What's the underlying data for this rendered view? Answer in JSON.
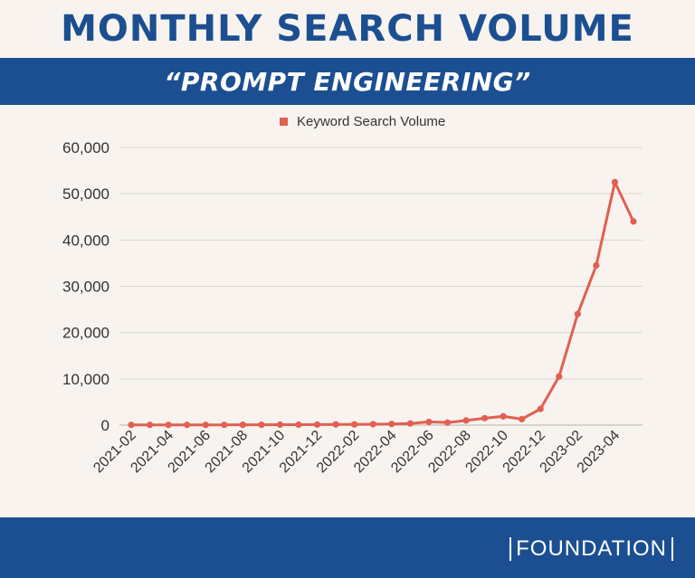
{
  "header": {
    "title": "MONTHLY SEARCH VOLUME",
    "subtitle": "“PROMPT ENGINEERING”"
  },
  "footer": {
    "brand": "FOUNDATION"
  },
  "colors": {
    "accent": "#1b4f91",
    "series": "#e06052",
    "background": "#f8f3ee"
  },
  "chart_data": {
    "type": "line",
    "title": "",
    "xlabel": "",
    "ylabel": "",
    "ylim": [
      0,
      60000
    ],
    "y_ticks": [
      0,
      10000,
      20000,
      30000,
      40000,
      50000,
      60000
    ],
    "y_tick_labels": [
      "0",
      "10,000",
      "20,000",
      "30,000",
      "40,000",
      "50,000",
      "60,000"
    ],
    "x": [
      "2021-02",
      "2021-03",
      "2021-04",
      "2021-05",
      "2021-06",
      "2021-07",
      "2021-08",
      "2021-09",
      "2021-10",
      "2021-11",
      "2021-12",
      "2022-01",
      "2022-02",
      "2022-03",
      "2022-04",
      "2022-05",
      "2022-06",
      "2022-07",
      "2022-08",
      "2022-09",
      "2022-10",
      "2022-11",
      "2022-12",
      "2023-01",
      "2023-02",
      "2023-03",
      "2023-04",
      "2023-05"
    ],
    "x_tick_labels": [
      "2021-02",
      "2021-04",
      "2021-06",
      "2021-08",
      "2021-10",
      "2021-12",
      "2022-02",
      "2022-04",
      "2022-06",
      "2022-08",
      "2022-10",
      "2022-12",
      "2023-02",
      "2023-04"
    ],
    "legend_position": "top-center",
    "grid": true,
    "series": [
      {
        "name": "Keyword Search Volume",
        "values": [
          50,
          50,
          50,
          50,
          50,
          60,
          70,
          80,
          100,
          100,
          120,
          150,
          150,
          200,
          250,
          350,
          700,
          550,
          1000,
          1500,
          1900,
          1300,
          3500,
          10500,
          24000,
          34500,
          52500,
          44000
        ]
      }
    ]
  }
}
